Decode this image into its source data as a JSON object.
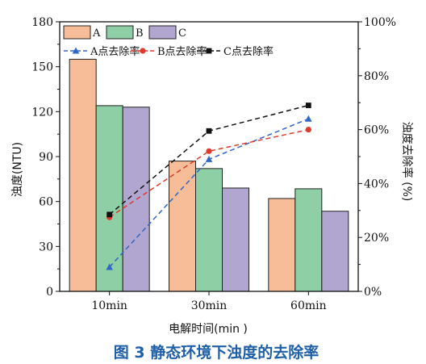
{
  "chart_data": {
    "type": "bar",
    "categories": [
      "10min",
      "30min",
      "60min"
    ],
    "series": [
      {
        "name": "A",
        "values": [
          155,
          87,
          62
        ],
        "color": "#f7bd98"
      },
      {
        "name": "B",
        "values": [
          124,
          82,
          68.5
        ],
        "color": "#8ecfa5"
      },
      {
        "name": "C",
        "values": [
          123,
          69,
          53.5
        ],
        "color": "#b0a6cf"
      }
    ],
    "line_series": [
      {
        "name": "A点去除率",
        "values": [
          9,
          49,
          64
        ],
        "color": "#2f66c7",
        "marker": "triangle"
      },
      {
        "name": "B点去除率",
        "values": [
          27.5,
          52,
          60
        ],
        "color": "#e03a2e",
        "marker": "circle"
      },
      {
        "name": "C点去除率",
        "values": [
          28.5,
          59.5,
          69
        ],
        "color": "#111111",
        "marker": "square"
      }
    ],
    "xlabel": "电解时间(min )",
    "ylabel": "浊度(NTU)",
    "y2label": "浊度去除率 (%)",
    "ylim": [
      0,
      180
    ],
    "y2lim": [
      0,
      100
    ],
    "yticks": [
      "0",
      "30",
      "60",
      "90",
      "120",
      "150",
      "180"
    ],
    "y2ticks": [
      "0%",
      "20%",
      "40%",
      "60%",
      "80%",
      "100%"
    ],
    "legend_position": "top-left",
    "grid": false
  },
  "caption": "图 3   静态环境下浊度的去除率"
}
